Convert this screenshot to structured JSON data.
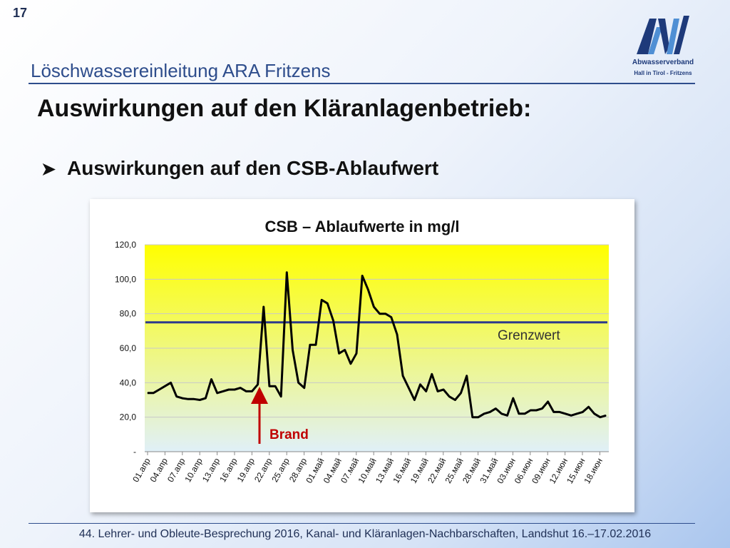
{
  "slide": {
    "number": "17",
    "subtitle": "Löschwassereinleitung ARA Fritzens",
    "title": "Auswirkungen auf den Kläranlagenbetrieb:",
    "bullet": "Auswirkungen auf den CSB-Ablaufwert",
    "footer": "44. Lehrer- und Obleute-Besprechung 2016, Kanal- und Kläranlagen-Nachbarschaften, Landshut 16.–17.02.2016"
  },
  "logo": {
    "name": "Abwasserverband",
    "sub": "Hall in Tirol - Fritzens",
    "colors": [
      "#1e3a7a",
      "#4f8fd4"
    ]
  },
  "chart_data": {
    "type": "line",
    "title": "CSB – Ablaufwerte in mg/l",
    "xlabel": "",
    "ylabel": "",
    "ylim": [
      0,
      120
    ],
    "y_ticks": [
      "-",
      "20,0",
      "40,0",
      "60,0",
      "80,0",
      "100,0",
      "120,0"
    ],
    "x_tick_labels": [
      "01.апр",
      "04.апр",
      "07.апр",
      "10.апр",
      "13.апр",
      "16.апр",
      "19.апр",
      "22.апр",
      "25.апр",
      "28.апр",
      "01.май",
      "04.май",
      "07.май",
      "10.май",
      "13.май",
      "16.май",
      "19.май",
      "22.май",
      "25.май",
      "28.май",
      "31.май",
      "03.июн",
      "06.июн",
      "09.июн",
      "12.июн",
      "15.июн",
      "18.июн"
    ],
    "grid": true,
    "series": [
      {
        "name": "",
        "color": "#000000",
        "values": [
          34,
          34,
          36,
          38,
          40,
          32,
          31,
          30.5,
          30.5,
          30,
          31,
          42,
          34,
          35,
          36,
          36,
          37,
          35,
          35,
          39,
          84,
          38,
          38,
          32,
          104,
          59,
          40,
          37,
          62,
          62,
          88,
          86,
          76,
          57,
          59,
          51,
          57,
          102,
          94,
          84,
          80,
          80,
          78,
          68,
          44,
          37,
          30,
          39,
          35,
          45,
          35,
          36,
          32,
          30,
          34,
          44,
          20,
          20,
          22,
          23,
          25,
          22,
          21,
          31,
          22,
          22,
          24,
          24,
          25,
          29,
          23,
          23,
          22,
          21,
          22,
          23,
          26,
          22,
          20,
          21
        ]
      }
    ],
    "reference_line": {
      "label": "Grenzwert",
      "value": 75,
      "color": "#2e3a8c"
    },
    "annotation": {
      "label": "Brand",
      "category_index": 19,
      "color": "#c00000"
    },
    "background_gradient": [
      "#ffff00",
      "#e0f0f8"
    ]
  }
}
